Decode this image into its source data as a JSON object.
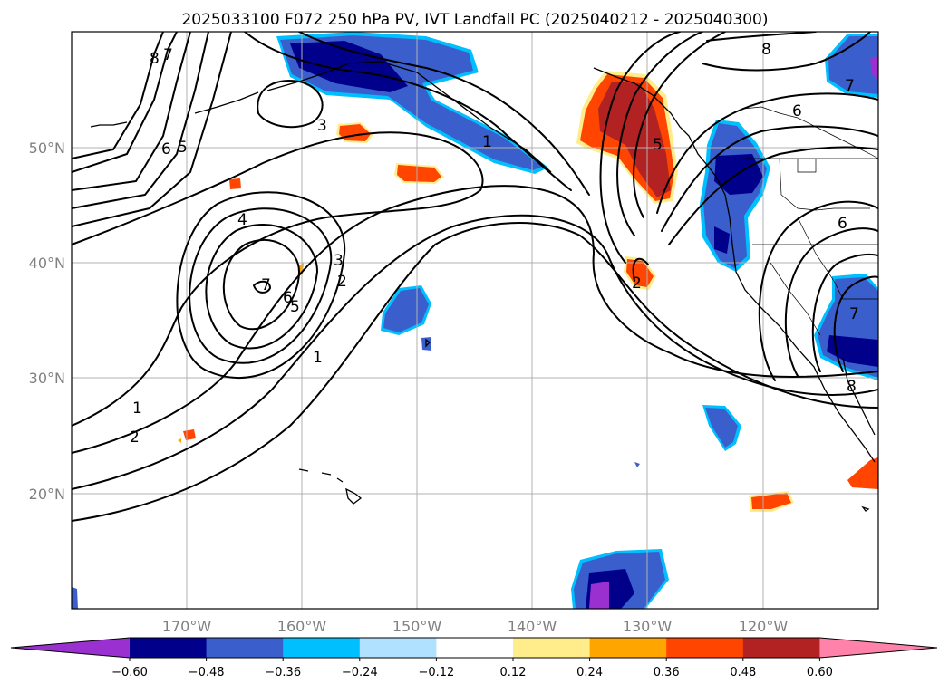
{
  "title": "2025033100 F072 250 hPa PV, IVT Landfall PC (2025040212 - 2025040300)",
  "lat_labels": [
    "50°N",
    "40°N",
    "30°N",
    "20°N"
  ],
  "lon_labels": [
    "170°W",
    "160°W",
    "150°W",
    "140°W",
    "130°W",
    "120°W"
  ],
  "colorbar": {
    "ticks": [
      "−0.60",
      "−0.48",
      "−0.36",
      "−0.24",
      "−0.12",
      "0.12",
      "0.24",
      "0.36",
      "0.48",
      "0.60"
    ],
    "colors": [
      "#9b30d0",
      "#00008b",
      "#3a5fcd",
      "#00bfff",
      "#b0e2ff",
      "#ffffff",
      "#ffec8b",
      "#ffa500",
      "#ff4500",
      "#b22222",
      "#ff82ab"
    ]
  },
  "map_data": {
    "extent": {
      "lon": [
        -180,
        -110
      ],
      "lat": [
        10,
        60
      ]
    },
    "field": "250 hPa PV contours (PVU) with IVT landfall PC shading"
  },
  "contour_labels": [
    "8",
    "7",
    "6",
    "5",
    "3",
    "1",
    "4",
    "7",
    "6",
    "5",
    "3",
    "2",
    "1",
    "2",
    "1",
    "8",
    "7",
    "6",
    "5",
    "2",
    "6",
    "7",
    "8"
  ]
}
